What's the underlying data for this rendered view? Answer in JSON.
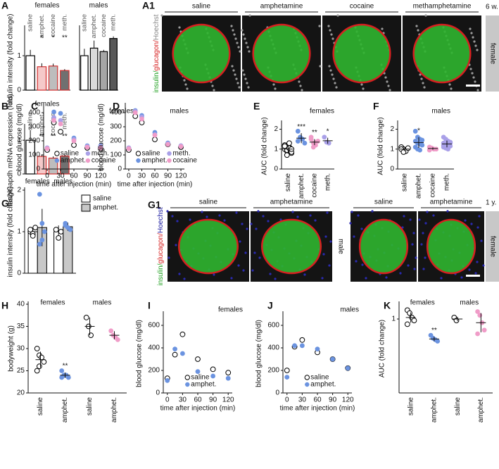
{
  "chart_data": [
    {
      "type": "bar",
      "label": "A",
      "title": "females",
      "ylabel": "insulin intensity (fold change)",
      "categories": [
        "saline",
        "amphet.",
        "cocaine",
        "meth."
      ],
      "values": [
        1.0,
        0.68,
        0.7,
        0.57
      ],
      "errors": [
        0.17,
        0.1,
        0.07,
        0.04
      ],
      "colors": [
        "#ffffff",
        "#f5c9c9",
        "#bdbdbd",
        "#707070"
      ],
      "edgecolors": [
        "#000000",
        "#d33030",
        "#d33030",
        "#d33030"
      ],
      "annotations": [
        null,
        "*",
        "*",
        "**"
      ],
      "ylim": [
        0,
        1.8
      ],
      "yticks": [
        0,
        1
      ]
    },
    {
      "type": "bar",
      "title": "males",
      "categories": [
        "saline",
        "amphet.",
        "cocaine",
        "meth."
      ],
      "values": [
        1.0,
        1.22,
        1.12,
        1.5
      ],
      "errors": [
        0.2,
        0.22,
        0.05,
        0.06
      ],
      "colors": [
        "#ffffff",
        "#d9d9d9",
        "#a6a6a6",
        "#595959"
      ],
      "edgecolors": [
        "#000000",
        "#000000",
        "#000000",
        "#000000"
      ],
      "ylim": [
        0,
        1.8
      ]
    },
    {
      "type": "bar",
      "label": "B",
      "title": "females",
      "ylabel": "Ins2/Gapdh mRNA expression (fold)",
      "categories": [
        "saline",
        "amphet.",
        "cocaine",
        "meth."
      ],
      "values": [
        1.0,
        0.52,
        0.47,
        0.53
      ],
      "errors": [
        0.3,
        0.06,
        0.05,
        0.05
      ],
      "colors": [
        "#ffffff",
        "#f5c9c9",
        "#bdbdbd",
        "#707070"
      ],
      "edgecolors": [
        "#000000",
        "#d33030",
        "#d33030",
        "#d33030"
      ],
      "annotations": [
        null,
        "**",
        "**",
        "**"
      ],
      "ylim": [
        0,
        1.4
      ],
      "yticks": [
        0,
        1
      ]
    },
    {
      "type": "scatter",
      "label": "C",
      "title": "females",
      "xlabel": "time after injection (min)",
      "ylabel": "blood glucose (mg/dl)",
      "x": [
        0,
        15,
        30,
        60,
        90,
        120
      ],
      "series": [
        {
          "name": "saline",
          "color": "#000000",
          "marker": "open",
          "values": [
            135,
            330,
            265,
            170,
            150,
            145
          ]
        },
        {
          "name": "amphet.",
          "color": "#6b93e0",
          "marker": "filled",
          "values": [
            150,
            405,
            395,
            220,
            165,
            165
          ]
        },
        {
          "name": "meth.",
          "color": "#a9a0e8",
          "marker": "filled",
          "values": [
            150,
            365,
            345,
            210,
            160,
            160
          ]
        },
        {
          "name": "cocaine",
          "color": "#f09cc8",
          "marker": "filled",
          "values": [
            145,
            345,
            320,
            200,
            155,
            150
          ]
        }
      ],
      "xlim": [
        -8,
        128
      ],
      "ylim": [
        0,
        450
      ],
      "xticks": [
        0,
        30,
        60,
        90,
        120
      ],
      "yticks": [
        0,
        100,
        200,
        300,
        400
      ]
    },
    {
      "type": "scatter",
      "label": "D",
      "title": "males",
      "xlabel": "time after injection (min)",
      "ylabel": "blood glucose (mg/dl)",
      "x": [
        0,
        15,
        30,
        60,
        90,
        120
      ],
      "series": [
        {
          "name": "saline",
          "color": "#000000",
          "marker": "open",
          "values": [
            135,
            375,
            330,
            210,
            175,
            155
          ]
        },
        {
          "name": "amphet.",
          "color": "#6b93e0",
          "marker": "filled",
          "values": [
            150,
            415,
            380,
            260,
            185,
            165
          ]
        },
        {
          "name": "meth.",
          "color": "#a9a0e8",
          "marker": "filled",
          "values": [
            150,
            410,
            370,
            245,
            180,
            165
          ]
        },
        {
          "name": "cocaine",
          "color": "#f09cc8",
          "marker": "filled",
          "values": [
            145,
            400,
            355,
            240,
            175,
            160
          ]
        }
      ],
      "xlim": [
        -8,
        128
      ],
      "ylim": [
        0,
        450
      ],
      "xticks": [
        0,
        30,
        60,
        90,
        120
      ],
      "yticks": [
        0,
        100,
        200,
        300,
        400
      ]
    },
    {
      "type": "strip",
      "label": "E",
      "title": "females",
      "ylabel": "AUC (fold change)",
      "categories": [
        "saline",
        "amphet.",
        "cocaine",
        "meth."
      ],
      "points": [
        [
          1.0,
          0.9,
          1.1,
          0.8,
          1.2,
          0.95,
          1.05,
          0.85,
          1.15,
          0.7,
          1.3,
          1.0
        ],
        [
          1.9,
          1.6,
          1.5,
          1.3,
          1.4
        ],
        [
          1.5,
          1.3,
          1.2,
          1.4,
          1.6,
          1.1,
          1.35
        ],
        [
          1.6,
          1.35,
          1.3
        ]
      ],
      "means": [
        1.0,
        1.55,
        1.35,
        1.42
      ],
      "errors": [
        0.15,
        0.25,
        0.15,
        0.15
      ],
      "colors": [
        "#000000",
        "#6b93e0",
        "#f09cc8",
        "#a9a0e8"
      ],
      "markers": [
        "open",
        "filled",
        "filled",
        "filled"
      ],
      "annotations": [
        null,
        "***",
        "**",
        "*"
      ],
      "ylim": [
        0,
        2.3
      ],
      "yticks": [
        0,
        1,
        2
      ]
    },
    {
      "type": "strip",
      "label": "F",
      "title": "males",
      "ylabel": "AUC (fold change)",
      "categories": [
        "saline",
        "amphet.",
        "cocaine",
        "meth."
      ],
      "points": [
        [
          1.1,
          1.0,
          0.9,
          1.05,
          1.0,
          0.85
        ],
        [
          1.9,
          1.6,
          1.5,
          1.45,
          1.4,
          1.3,
          1.25,
          1.2,
          1.1,
          1.0,
          0.95
        ],
        [
          1.1,
          1.05,
          1.0,
          1.0,
          0.95,
          1.05
        ],
        [
          1.6,
          1.5,
          1.4,
          1.35,
          1.3,
          1.25,
          1.2,
          1.15,
          1.1,
          1.05,
          1.0,
          1.3,
          1.2
        ]
      ],
      "means": [
        1.0,
        1.33,
        1.03,
        1.26
      ],
      "errors": [
        0.1,
        0.27,
        0.06,
        0.17
      ],
      "colors": [
        "#000000",
        "#6b93e0",
        "#f09cc8",
        "#a9a0e8"
      ],
      "markers": [
        "open",
        "filled",
        "filled",
        "filled"
      ],
      "annotations": [
        null,
        "*",
        null,
        null
      ],
      "ylim": [
        0,
        2.3
      ],
      "yticks": [
        0,
        1,
        2
      ]
    },
    {
      "type": "grouped_bar",
      "label": "G",
      "ylabel": "insulin intensity (fold change)",
      "groups": [
        "females",
        "males"
      ],
      "series": [
        {
          "name": "saline",
          "color": "#ffffff",
          "point_color": "#000000",
          "marker": "open",
          "values": [
            1.0,
            1.0
          ],
          "errors": [
            0.1,
            0.15
          ],
          "points": [
            [
              1.0,
              0.95,
              1.1,
              1.05,
              0.9
            ],
            [
              1.05,
              0.85,
              1.0
            ]
          ]
        },
        {
          "name": "amphet.",
          "color": "#c8c8c8",
          "point_color": "#6b93e0",
          "marker": "filled",
          "values": [
            1.1,
            1.12
          ],
          "errors": [
            0.45,
            0.1
          ],
          "points": [
            [
              1.9,
              1.2,
              1.0,
              0.7,
              0.8
            ],
            [
              1.2,
              1.1,
              1.05,
              1.15
            ]
          ]
        }
      ],
      "ylim": [
        0,
        2
      ],
      "yticks": [
        0,
        1,
        2
      ]
    },
    {
      "type": "strip",
      "label": "H",
      "ylabel": "bodyweight (g)",
      "group_labels": [
        "females",
        "males"
      ],
      "categories": [
        "saline",
        "amphet.",
        "saline",
        "amphet."
      ],
      "points": [
        [
          30,
          28.5,
          28,
          27,
          25,
          26
        ],
        [
          25,
          24,
          24,
          23.5,
          23.5
        ],
        [
          37,
          35,
          33
        ],
        [
          34,
          33,
          32.5,
          32
        ]
      ],
      "means": [
        27.5,
        24,
        35,
        33
      ],
      "errors": [
        1.8,
        0.6,
        2,
        0.9
      ],
      "colors": [
        "#000000",
        "#6b93e0",
        "#000000",
        "#f09cc8"
      ],
      "markers": [
        "open",
        "filled",
        "open",
        "filled"
      ],
      "annotations": [
        null,
        "**",
        null,
        null
      ],
      "ylim": [
        20,
        40
      ],
      "yticks": [
        20,
        25,
        30,
        35,
        40
      ]
    },
    {
      "type": "scatter",
      "label": "I",
      "title": "females",
      "xlabel": "time after injection (min)",
      "ylabel": "blood glucose (mg/dl)",
      "x": [
        0,
        15,
        30,
        60,
        90,
        120
      ],
      "series": [
        {
          "name": "saline",
          "color": "#000000",
          "marker": "open",
          "values": [
            130,
            340,
            520,
            300,
            210,
            180
          ]
        },
        {
          "name": "amphet.",
          "color": "#6b93e0",
          "marker": "filled",
          "values": [
            110,
            390,
            350,
            190,
            150,
            130
          ]
        }
      ],
      "xlim": [
        -8,
        128
      ],
      "ylim": [
        0,
        700
      ],
      "xticks": [
        0,
        30,
        60,
        90,
        120
      ],
      "yticks": [
        0,
        200,
        400,
        600
      ]
    },
    {
      "type": "scatter",
      "label": "J",
      "title": "males",
      "xlabel": "time after injection (min)",
      "ylabel": "blood glucose (mg/dl)",
      "x": [
        0,
        15,
        30,
        60,
        90,
        120
      ],
      "series": [
        {
          "name": "saline",
          "color": "#000000",
          "marker": "open",
          "values": [
            200,
            410,
            470,
            360,
            300,
            220
          ]
        },
        {
          "name": "amphet.",
          "color": "#6b93e0",
          "marker": "filled",
          "values": [
            140,
            420,
            420,
            390,
            300,
            220
          ]
        }
      ],
      "xlim": [
        -8,
        128
      ],
      "ylim": [
        0,
        700
      ],
      "xticks": [
        0,
        30,
        60,
        90,
        120
      ],
      "yticks": [
        0,
        200,
        400,
        600
      ]
    },
    {
      "type": "strip",
      "label": "K",
      "ylabel": "AUC (fold change)",
      "group_labels": [
        "females",
        "males"
      ],
      "categories": [
        "saline",
        "amphet.",
        "saline",
        "amphet."
      ],
      "points": [
        [
          1.12,
          1.08,
          1.02,
          0.98,
          0.93
        ],
        [
          0.78,
          0.74,
          0.72,
          0.7
        ],
        [
          1.02,
          0.98
        ],
        [
          1.1,
          1.05,
          0.95,
          0.85,
          0.8
        ]
      ],
      "means": [
        1.02,
        0.73,
        1.0,
        0.95
      ],
      "errors": [
        0.07,
        0.03,
        0.03,
        0.13
      ],
      "colors": [
        "#000000",
        "#6b93e0",
        "#000000",
        "#f09cc8"
      ],
      "markers": [
        "open",
        "filled",
        "open",
        "filled"
      ],
      "annotations": [
        null,
        "**",
        null,
        null
      ],
      "ylim": [
        0,
        1.2
      ],
      "yticks": [
        1
      ]
    }
  ],
  "images": [
    {
      "label": "A1",
      "stain": [
        "insulin/",
        "glucagon/",
        "Hoechst"
      ],
      "stain_colors": [
        "#1fa01f",
        "#d62020",
        "#888888"
      ],
      "age": "6 w.",
      "groups": [
        {
          "sex": "female",
          "columns": [
            "saline",
            "amphetamine",
            "cocaine",
            "methamphetamine"
          ]
        }
      ]
    },
    {
      "label": "G1",
      "stain": [
        "insulin/",
        "glucagon/",
        "Hoechst"
      ],
      "stain_colors": [
        "#1fa01f",
        "#d62020",
        "#1a1aa0"
      ],
      "age": "1 y.",
      "groups": [
        {
          "sex": "male",
          "columns": [
            "saline",
            "amphetamine"
          ]
        },
        {
          "sex": "female",
          "columns": [
            "saline",
            "amphetamine"
          ]
        }
      ]
    }
  ]
}
